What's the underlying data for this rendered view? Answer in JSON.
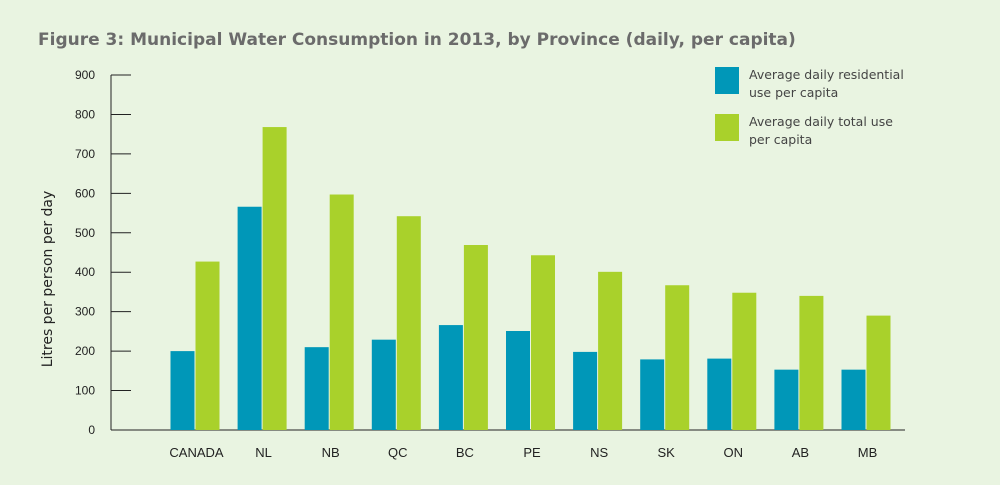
{
  "chart_data": {
    "type": "bar",
    "title": "Figure 3: Municipal Water Consumption in 2013, by Province (daily, per capita)",
    "xlabel": "",
    "ylabel": "Litres per person per day",
    "ylim": [
      0,
      900
    ],
    "yticks": [
      0,
      100,
      200,
      300,
      400,
      500,
      600,
      700,
      800,
      900
    ],
    "categories": [
      "CANADA",
      "NL",
      "NB",
      "QC",
      "BC",
      "PE",
      "NS",
      "SK",
      "ON",
      "AB",
      "MB"
    ],
    "series": [
      {
        "name": "Average daily residential use per capita",
        "legend_lines": [
          "Average daily residential",
          "use per capita"
        ],
        "color": "#0097b8",
        "values": [
          200,
          566,
          210,
          229,
          266,
          251,
          198,
          179,
          181,
          153,
          153
        ]
      },
      {
        "name": "Average daily total use per capita",
        "legend_lines": [
          "Average daily total use",
          "per capita"
        ],
        "color": "#a9d12b",
        "values": [
          427,
          768,
          597,
          542,
          469,
          443,
          401,
          367,
          348,
          340,
          290
        ]
      }
    ],
    "grid": false,
    "legend_position": "top-right"
  }
}
